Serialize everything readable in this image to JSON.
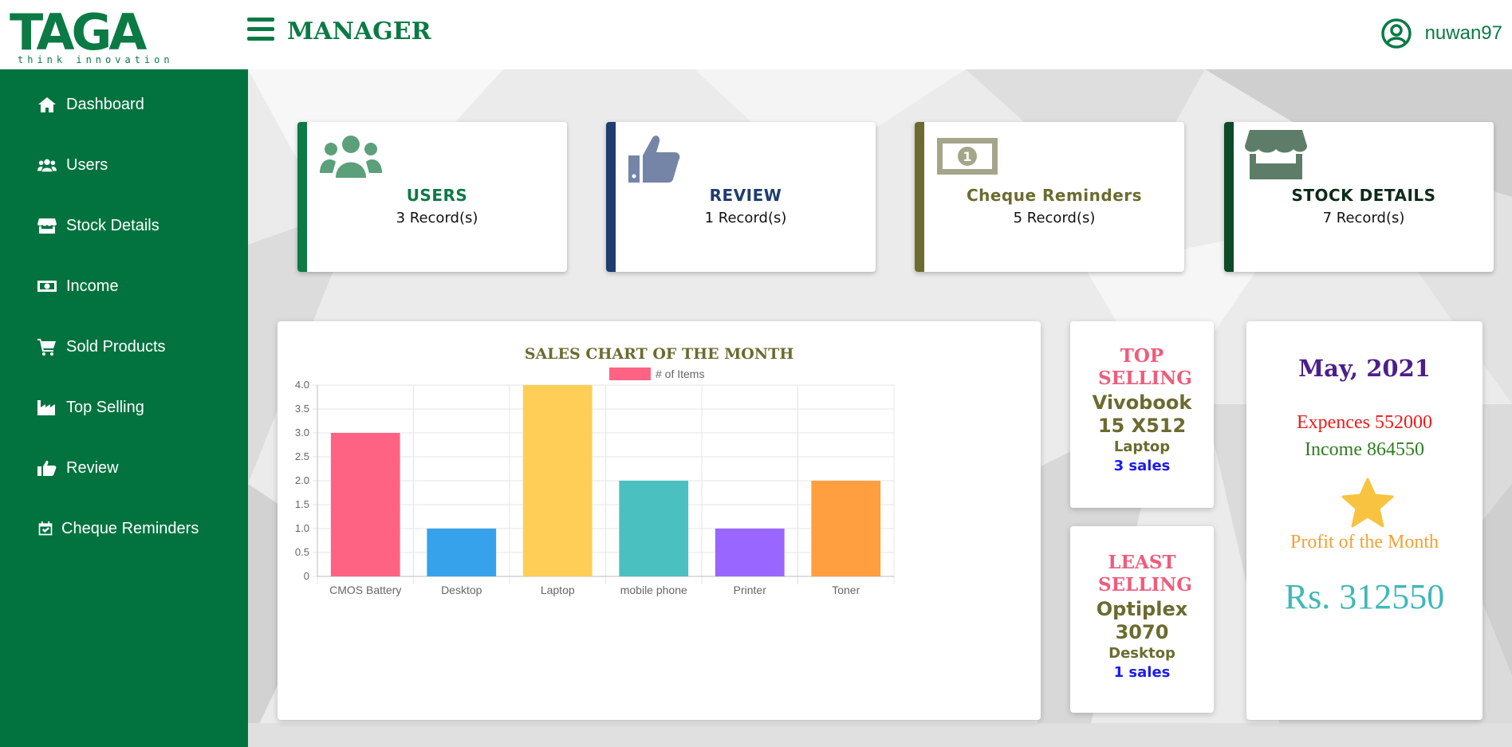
{
  "header": {
    "logo_text": "TAGA",
    "logo_tagline": "think innovation",
    "title": "MANAGER",
    "user_name": "nuwan97"
  },
  "sidebar": {
    "items": [
      {
        "label": "Dashboard",
        "icon": "home-icon"
      },
      {
        "label": "Users",
        "icon": "users-icon"
      },
      {
        "label": "Stock Details",
        "icon": "store-icon"
      },
      {
        "label": "Income",
        "icon": "money-icon"
      },
      {
        "label": "Sold Products",
        "icon": "cart-icon"
      },
      {
        "label": "Top Selling",
        "icon": "industry-icon"
      },
      {
        "label": "Review",
        "icon": "thumbs-up-icon"
      },
      {
        "label": "Cheque Reminders",
        "icon": "calendar-check-icon"
      }
    ]
  },
  "cards": [
    {
      "title": "USERS",
      "count": "3 Record(s)",
      "color": "#0b7a44",
      "icon": "users-icon"
    },
    {
      "title": "REVIEW",
      "count": "1 Record(s)",
      "color": "#1f3c6e",
      "icon": "thumbs-up-icon"
    },
    {
      "title": "Cheque Reminders",
      "count": "5 Record(s)",
      "color": "#6b6b30",
      "icon": "money-bill-icon"
    },
    {
      "title": "STOCK DETAILS",
      "count": "7 Record(s)",
      "color": "#0d4a28",
      "icon": "store-icon"
    }
  ],
  "chart_data": {
    "type": "bar",
    "title": "SALES CHART OF THE MONTH",
    "categories": [
      "CMOS Battery",
      "Desktop",
      "Laptop",
      "mobile phone",
      "Printer",
      "Toner"
    ],
    "series": [
      {
        "name": "# of Items",
        "values": [
          3,
          1,
          4,
          2,
          1,
          2
        ]
      }
    ],
    "colors": [
      "#ff6384",
      "#36a2eb",
      "#ffce56",
      "#4bc0c0",
      "#9966ff",
      "#ff9f40"
    ],
    "ylim": [
      0,
      4
    ],
    "yticks": [
      "0",
      "0.5",
      "1.0",
      "1.5",
      "2.0",
      "2.5",
      "3.0",
      "3.5",
      "4.0"
    ],
    "grid": true,
    "legend": "top"
  },
  "top_selling": {
    "heading": "TOP SELLING",
    "name": "Vivobook 15 X512",
    "category": "Laptop",
    "sales": "3 sales"
  },
  "least_selling": {
    "heading": "LEAST SELLING",
    "name": "Optiplex 3070",
    "category": "Desktop",
    "sales": "1 sales"
  },
  "month": {
    "title": "May, 2021",
    "expences": "Expences 552000",
    "income": "Income 864550",
    "profit_label": "Profit of the Month",
    "profit_value": "Rs. 312550"
  }
}
